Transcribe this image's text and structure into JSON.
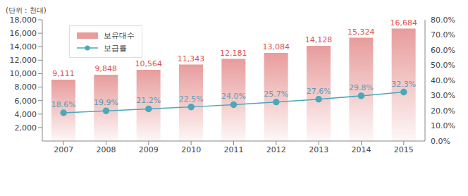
{
  "chart_data": {
    "type": "bar",
    "ylabel": "(단위 : 천대)",
    "categories": [
      "2007",
      "2008",
      "2009",
      "2010",
      "2011",
      "2012",
      "2013",
      "2014",
      "2015"
    ],
    "series": [
      {
        "name": "보유대수",
        "type": "bar",
        "color": "#e89c9c",
        "values": [
          9111,
          9848,
          10564,
          11343,
          12181,
          13084,
          14128,
          15324,
          16684
        ],
        "value_labels": [
          "9,111",
          "9,848",
          "10,564",
          "11,343",
          "12,181",
          "13,084",
          "14,128",
          "15,324",
          "16,684"
        ]
      },
      {
        "name": "보급률",
        "type": "line",
        "axis": "y2",
        "color": "#4aa9b9",
        "marker": "circle",
        "values": [
          18.6,
          19.9,
          21.2,
          22.5,
          24.0,
          25.7,
          27.6,
          29.8,
          32.3
        ],
        "value_labels": [
          "18.6%",
          "19.9%",
          "21.2%",
          "22.5%",
          "24.0%",
          "25.7%",
          "27.6%",
          "29.8%",
          "32.3%"
        ]
      }
    ],
    "ylim": [
      0,
      18000
    ],
    "yticks": [
      {
        "value": 2000,
        "label": "2,000"
      },
      {
        "value": 4000,
        "label": "4,000"
      },
      {
        "value": 6000,
        "label": "6,000"
      },
      {
        "value": 8000,
        "label": "8,000"
      },
      {
        "value": 10000,
        "label": "10,000"
      },
      {
        "value": 12000,
        "label": "12,000"
      },
      {
        "value": 14000,
        "label": "14,000"
      },
      {
        "value": 16000,
        "label": "16,000"
      },
      {
        "value": 18000,
        "label": "18,000"
      }
    ],
    "y2lim": [
      0,
      80
    ],
    "y2ticks": [
      {
        "value": 0,
        "label": "0.0%"
      },
      {
        "value": 10,
        "label": "10.0%"
      },
      {
        "value": 20,
        "label": "20.0%"
      },
      {
        "value": 30,
        "label": "30.0%"
      },
      {
        "value": 40,
        "label": "40.0%"
      },
      {
        "value": 50,
        "label": "50.0%"
      },
      {
        "value": 60,
        "label": "60.0%"
      },
      {
        "value": 70,
        "label": "70.0%"
      },
      {
        "value": 80,
        "label": "80.0%"
      }
    ],
    "grid": false,
    "legend": "upper left",
    "data_labels": true
  }
}
